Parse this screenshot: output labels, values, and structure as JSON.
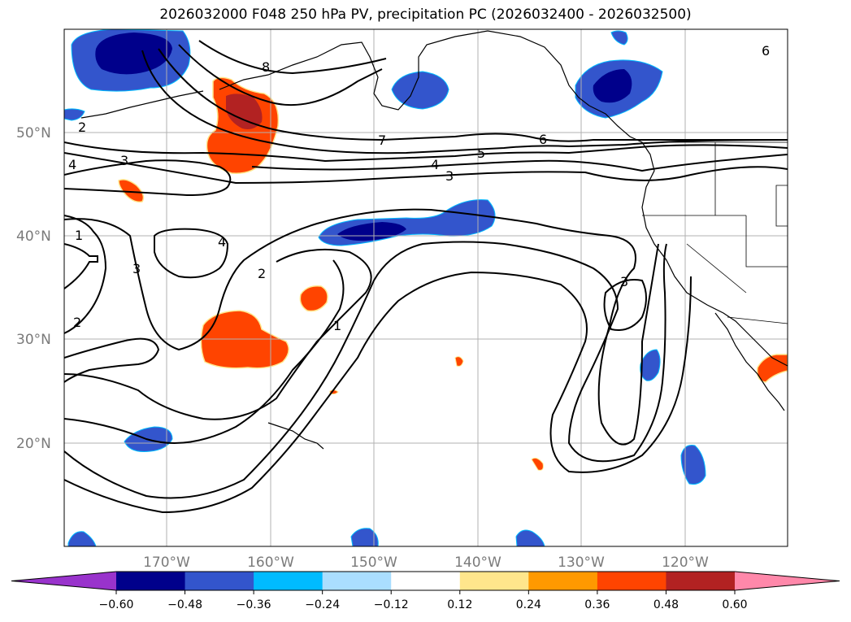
{
  "title": "2026032000 F048 250 hPa PV, precipitation PC (2026032400 - 2026032500)",
  "map": {
    "lat_labels": [
      "50°N",
      "40°N",
      "30°N",
      "20°N"
    ],
    "lon_labels": [
      "170°W",
      "160°W",
      "150°W",
      "140°W",
      "130°W",
      "120°W"
    ],
    "contour_labels": [
      "2",
      "8",
      "7",
      "6",
      "5",
      "4",
      "3",
      "3",
      "4",
      "1",
      "3",
      "2",
      "4",
      "2",
      "1",
      "3",
      "6",
      "2"
    ]
  },
  "colorbar": {
    "ticks": [
      "−0.60",
      "−0.48",
      "−0.36",
      "−0.24",
      "−0.12",
      "0.12",
      "0.24",
      "0.36",
      "0.48",
      "0.60"
    ],
    "colors": [
      "#9933cc",
      "#00008b",
      "#3355cc",
      "#00bbff",
      "#aadeff",
      "#ffffff",
      "#ffe68c",
      "#ff9900",
      "#ff4400",
      "#b22222",
      "#ff88aa"
    ]
  }
}
